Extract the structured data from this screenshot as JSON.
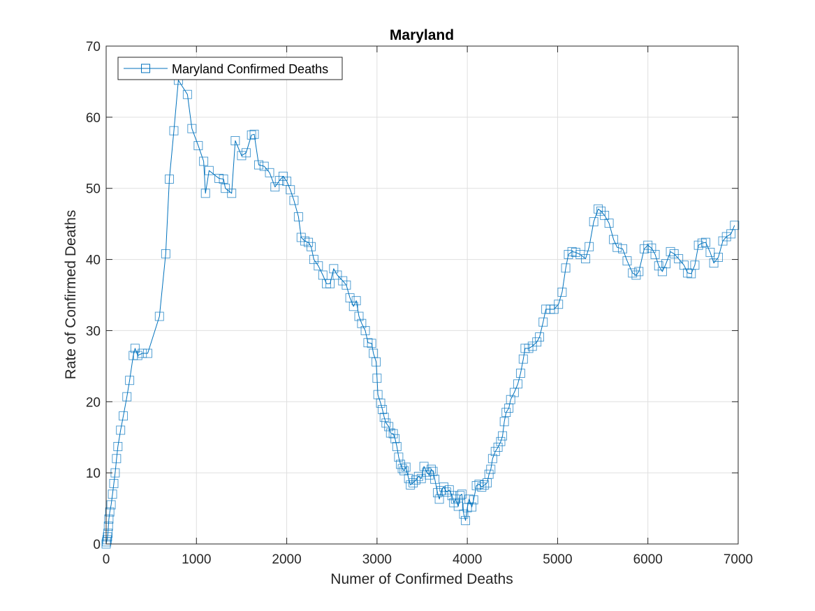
{
  "chart_data": {
    "type": "line",
    "title": "Maryland",
    "xlabel": "Numer of Confirmed Deaths",
    "ylabel": "Rate of Confirmed Deaths",
    "xlim": [
      0,
      7000
    ],
    "ylim": [
      0,
      70
    ],
    "xticks": [
      0,
      1000,
      2000,
      3000,
      4000,
      5000,
      6000,
      7000
    ],
    "yticks": [
      0,
      10,
      20,
      30,
      40,
      50,
      60,
      70
    ],
    "grid": true,
    "legend_position": "top-left",
    "marker": "square",
    "series": [
      {
        "name": "Maryland Confirmed Deaths",
        "color": "#0072BD",
        "points": [
          [
            0,
            0
          ],
          [
            5,
            0.3
          ],
          [
            10,
            0.6
          ],
          [
            15,
            1
          ],
          [
            20,
            1.5
          ],
          [
            25,
            2.5
          ],
          [
            30,
            3.5
          ],
          [
            40,
            4.5
          ],
          [
            55,
            5.5
          ],
          [
            70,
            7
          ],
          [
            85,
            8.5
          ],
          [
            100,
            10
          ],
          [
            115,
            12
          ],
          [
            130,
            13.7
          ],
          [
            160,
            16
          ],
          [
            190,
            18
          ],
          [
            230,
            20.7
          ],
          [
            260,
            23
          ],
          [
            300,
            26.5
          ],
          [
            320,
            27.5
          ],
          [
            350,
            26.5
          ],
          [
            400,
            26.8
          ],
          [
            460,
            26.8
          ],
          [
            590,
            32
          ],
          [
            660,
            40.8
          ],
          [
            700,
            51.3
          ],
          [
            750,
            58.1
          ],
          [
            800,
            65.2
          ],
          [
            900,
            63.2
          ],
          [
            950,
            58.4
          ],
          [
            1020,
            56
          ],
          [
            1080,
            53.8
          ],
          [
            1100,
            49.3
          ],
          [
            1140,
            52.5
          ],
          [
            1250,
            51.4
          ],
          [
            1300,
            51.3
          ],
          [
            1320,
            50
          ],
          [
            1390,
            49.3
          ],
          [
            1430,
            56.7
          ],
          [
            1500,
            54.6
          ],
          [
            1550,
            55
          ],
          [
            1610,
            57.5
          ],
          [
            1640,
            57.6
          ],
          [
            1690,
            53.3
          ],
          [
            1750,
            53.1
          ],
          [
            1810,
            52.2
          ],
          [
            1870,
            50.2
          ],
          [
            1920,
            51.1
          ],
          [
            1960,
            51.7
          ],
          [
            2000,
            51
          ],
          [
            2040,
            49.8
          ],
          [
            2080,
            48.3
          ],
          [
            2130,
            46
          ],
          [
            2160,
            43.1
          ],
          [
            2200,
            42.6
          ],
          [
            2240,
            42.4
          ],
          [
            2270,
            41.8
          ],
          [
            2300,
            40
          ],
          [
            2350,
            39.1
          ],
          [
            2400,
            37.8
          ],
          [
            2440,
            36.6
          ],
          [
            2480,
            36.6
          ],
          [
            2520,
            38.7
          ],
          [
            2560,
            37.8
          ],
          [
            2620,
            37
          ],
          [
            2660,
            36.4
          ],
          [
            2700,
            34.6
          ],
          [
            2740,
            33.4
          ],
          [
            2770,
            34.2
          ],
          [
            2800,
            32
          ],
          [
            2830,
            31
          ],
          [
            2870,
            30
          ],
          [
            2900,
            28.3
          ],
          [
            2940,
            28.2
          ],
          [
            2960,
            26.8
          ],
          [
            2990,
            25.6
          ],
          [
            3000,
            23.3
          ],
          [
            3010,
            21
          ],
          [
            3040,
            19.8
          ],
          [
            3060,
            18.9
          ],
          [
            3080,
            17.8
          ],
          [
            3100,
            17
          ],
          [
            3130,
            16.5
          ],
          [
            3150,
            15.6
          ],
          [
            3180,
            15.5
          ],
          [
            3200,
            14.8
          ],
          [
            3220,
            13.7
          ],
          [
            3240,
            12.2
          ],
          [
            3260,
            11.2
          ],
          [
            3280,
            10.6
          ],
          [
            3300,
            10.3
          ],
          [
            3320,
            10.8
          ],
          [
            3350,
            9.2
          ],
          [
            3370,
            8.3
          ],
          [
            3400,
            8.6
          ],
          [
            3430,
            9
          ],
          [
            3460,
            9.5
          ],
          [
            3490,
            9.2
          ],
          [
            3520,
            10.9
          ],
          [
            3550,
            10.1
          ],
          [
            3580,
            9.7
          ],
          [
            3600,
            10.5
          ],
          [
            3620,
            10.2
          ],
          [
            3640,
            9.1
          ],
          [
            3670,
            7.2
          ],
          [
            3690,
            6.3
          ],
          [
            3710,
            7.5
          ],
          [
            3740,
            8
          ],
          [
            3770,
            7.3
          ],
          [
            3800,
            7.6
          ],
          [
            3830,
            6.8
          ],
          [
            3850,
            5.8
          ],
          [
            3870,
            6.3
          ],
          [
            3900,
            5.3
          ],
          [
            3920,
            6.8
          ],
          [
            3940,
            7
          ],
          [
            3960,
            4.2
          ],
          [
            3980,
            3.3
          ],
          [
            4000,
            5.1
          ],
          [
            4020,
            6.3
          ],
          [
            4050,
            5.2
          ],
          [
            4070,
            6.2
          ],
          [
            4100,
            8.2
          ],
          [
            4130,
            8.4
          ],
          [
            4160,
            8
          ],
          [
            4190,
            8.3
          ],
          [
            4220,
            8.6
          ],
          [
            4240,
            9.8
          ],
          [
            4260,
            10.5
          ],
          [
            4280,
            12
          ],
          [
            4310,
            13
          ],
          [
            4340,
            13.6
          ],
          [
            4370,
            14.4
          ],
          [
            4390,
            15.2
          ],
          [
            4410,
            17.2
          ],
          [
            4430,
            18.5
          ],
          [
            4460,
            19.1
          ],
          [
            4480,
            20.3
          ],
          [
            4520,
            21.3
          ],
          [
            4560,
            22.5
          ],
          [
            4590,
            24
          ],
          [
            4620,
            26
          ],
          [
            4640,
            27.5
          ],
          [
            4680,
            27.5
          ],
          [
            4720,
            27.8
          ],
          [
            4770,
            28.4
          ],
          [
            4800,
            29.1
          ],
          [
            4840,
            31.2
          ],
          [
            4870,
            33
          ],
          [
            4920,
            33
          ],
          [
            4960,
            33
          ],
          [
            5010,
            33.7
          ],
          [
            5050,
            35.4
          ],
          [
            5090,
            38.8
          ],
          [
            5120,
            40.7
          ],
          [
            5160,
            41.1
          ],
          [
            5200,
            41
          ],
          [
            5250,
            40.7
          ],
          [
            5310,
            40.1
          ],
          [
            5350,
            41.8
          ],
          [
            5400,
            45.3
          ],
          [
            5450,
            47.1
          ],
          [
            5480,
            46.8
          ],
          [
            5520,
            46.2
          ],
          [
            5570,
            45.1
          ],
          [
            5620,
            42.8
          ],
          [
            5660,
            41.7
          ],
          [
            5720,
            41.5
          ],
          [
            5770,
            39.8
          ],
          [
            5830,
            38.1
          ],
          [
            5870,
            37.8
          ],
          [
            5900,
            38.3
          ],
          [
            5960,
            41.5
          ],
          [
            6000,
            42
          ],
          [
            6040,
            41.6
          ],
          [
            6080,
            40.7
          ],
          [
            6120,
            39.1
          ],
          [
            6160,
            38.3
          ],
          [
            6200,
            39.4
          ],
          [
            6250,
            41.1
          ],
          [
            6290,
            40.8
          ],
          [
            6340,
            40.1
          ],
          [
            6400,
            39.2
          ],
          [
            6440,
            38.1
          ],
          [
            6480,
            38
          ],
          [
            6520,
            39.2
          ],
          [
            6560,
            42
          ],
          [
            6600,
            42.3
          ],
          [
            6640,
            42.4
          ],
          [
            6690,
            41
          ],
          [
            6730,
            39.5
          ],
          [
            6780,
            40.3
          ],
          [
            6830,
            42.6
          ],
          [
            6870,
            43.2
          ],
          [
            6920,
            43.6
          ],
          [
            6960,
            44.8
          ]
        ]
      }
    ]
  }
}
